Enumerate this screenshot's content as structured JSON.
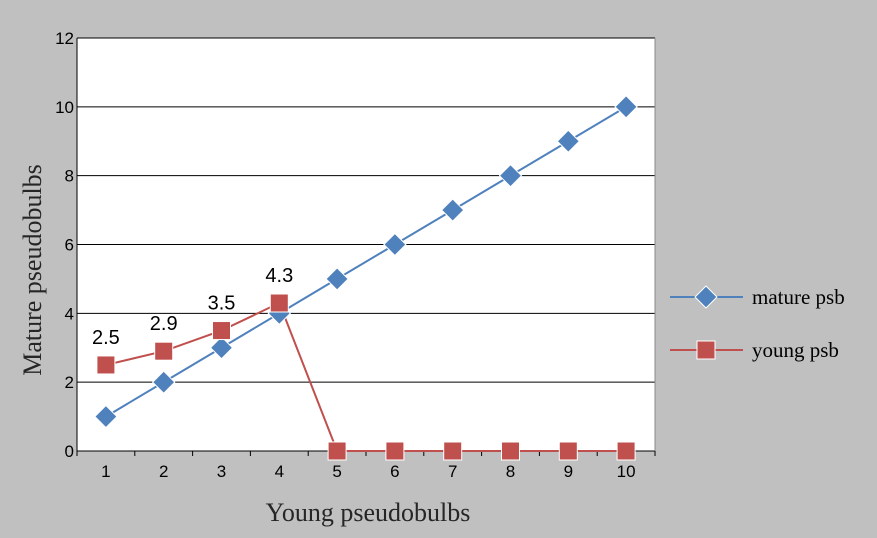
{
  "chart_data": {
    "type": "line",
    "title": "",
    "xlabel": "Young pseudobulbs",
    "ylabel": "Mature pseudobulbs",
    "categories": [
      "1",
      "2",
      "3",
      "4",
      "5",
      "6",
      "7",
      "8",
      "9",
      "10"
    ],
    "ylim": [
      0,
      12
    ],
    "yticks": [
      "0",
      "2",
      "4",
      "6",
      "8",
      "10",
      "12"
    ],
    "grid": true,
    "legend_position": "right",
    "series": [
      {
        "name": "mature psb",
        "color": "#4f81bd",
        "marker": "diamond",
        "values": [
          1,
          2,
          3,
          4,
          5,
          6,
          7,
          8,
          9,
          10
        ]
      },
      {
        "name": "young psb",
        "color": "#c0504d",
        "marker": "square",
        "values": [
          2.5,
          2.9,
          3.5,
          4.3,
          0,
          0,
          0,
          0,
          0,
          0
        ],
        "data_labels": [
          "2.5",
          "2.9",
          "3.5",
          "4.3",
          null,
          null,
          null,
          null,
          null,
          null
        ]
      }
    ]
  }
}
